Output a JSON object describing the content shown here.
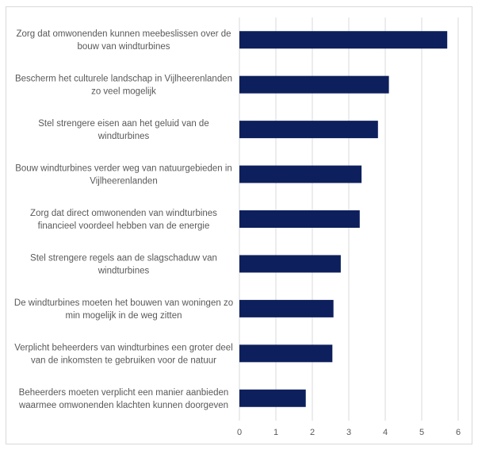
{
  "chart_data": {
    "type": "bar",
    "orientation": "horizontal",
    "categories": [
      [
        "Zorg dat omwonenden kunnen meebeslissen over de",
        "bouw van windturbines"
      ],
      [
        "Bescherm het culturele landschap in Vijlheerenlanden",
        "zo veel mogelijk"
      ],
      [
        "Stel strengere eisen aan het geluid van de",
        "windturbines"
      ],
      [
        "Bouw windturbines verder weg van natuurgebieden in",
        "Vijlheerenlanden"
      ],
      [
        "Zorg dat direct omwonenden van windturbines",
        "financieel voordeel hebben van de energie"
      ],
      [
        "Stel strengere regels aan de slagschaduw van",
        "windturbines"
      ],
      [
        "De windturbines moeten het bouwen van woningen zo",
        "min mogelijk in de weg zitten"
      ],
      [
        "Verplicht beheerders van windturbines een groter deel",
        "van de inkomsten te gebruiken voor de natuur"
      ],
      [
        "Beheerders moeten verplicht een manier aanbieden",
        "waarmee omwonenden klachten kunnen doorgeven"
      ]
    ],
    "values": [
      5.7,
      4.1,
      3.8,
      3.35,
      3.3,
      2.78,
      2.58,
      2.55,
      1.82
    ],
    "xlim": [
      0,
      6
    ],
    "xticks": [
      "0",
      "1",
      "2",
      "3",
      "4",
      "5",
      "6"
    ],
    "grid": "vertical",
    "bar_color": "#0d1f5c",
    "grid_color": "#d9d9d9",
    "title": "",
    "xlabel": "",
    "ylabel": ""
  }
}
